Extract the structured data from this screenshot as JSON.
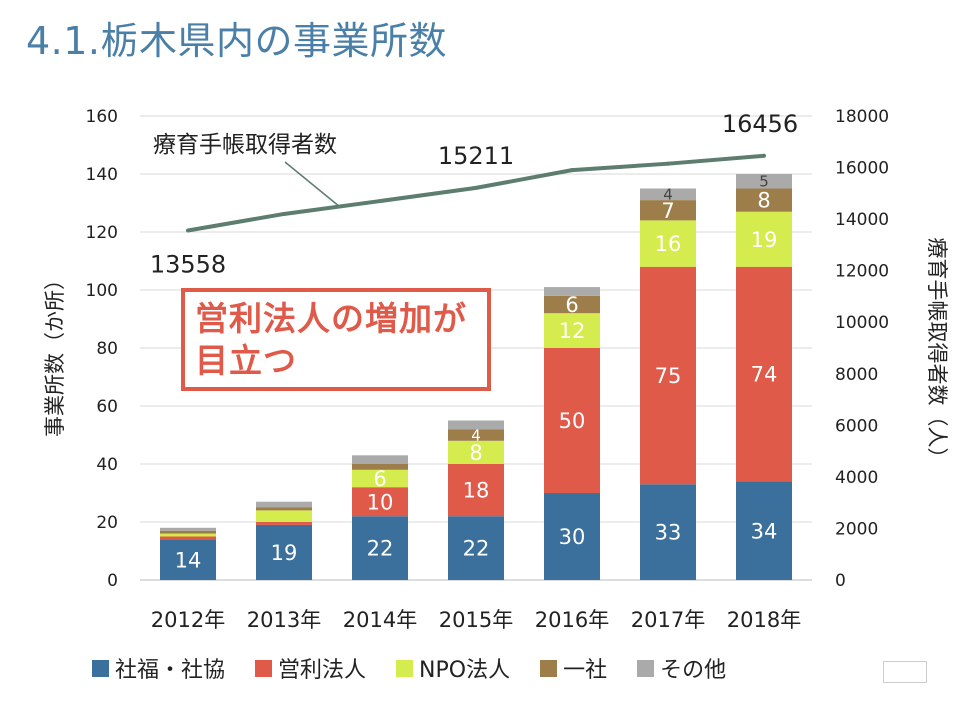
{
  "page": {
    "title": "4.1.栃木県内の事業所数"
  },
  "callout": {
    "line1": "営利法人の増加が",
    "line2": "目立つ"
  },
  "colors": {
    "social_welfare": "#3b6f9c",
    "for_profit": "#e05a4a",
    "npo": "#d4ec4e",
    "general_incorporated": "#9d7d4a",
    "other": "#aaaaaa",
    "line": "#5d7d6e"
  },
  "chart_data": {
    "type": "bar",
    "stacked": true,
    "categories": [
      "2012年",
      "2013年",
      "2014年",
      "2015年",
      "2016年",
      "2017年",
      "2018年"
    ],
    "ylabel": "事業所数（か所）",
    "y2label": "療育手帳取得者数（人）",
    "ylim": [
      0,
      160
    ],
    "y2lim": [
      0,
      18000
    ],
    "yticks": [
      0,
      20,
      40,
      60,
      80,
      100,
      120,
      140,
      160
    ],
    "y2ticks": [
      0,
      2000,
      4000,
      6000,
      8000,
      10000,
      12000,
      14000,
      16000,
      18000
    ],
    "grid": true,
    "legend_position": "bottom",
    "series": [
      {
        "name": "社福・社協",
        "color": "#3b6f9c",
        "values": [
          14,
          19,
          22,
          22,
          30,
          33,
          34
        ],
        "labels": [
          "14",
          "19",
          "22",
          "22",
          "30",
          "33",
          "34"
        ]
      },
      {
        "name": "営利法人",
        "color": "#e05a4a",
        "values": [
          1,
          1,
          10,
          18,
          50,
          75,
          74
        ],
        "labels": [
          "",
          "",
          "10",
          "18",
          "50",
          "75",
          "74"
        ]
      },
      {
        "name": "NPO法人",
        "color": "#d4ec4e",
        "values": [
          1,
          4,
          6,
          8,
          12,
          16,
          19
        ],
        "labels": [
          "",
          "",
          "6",
          "8",
          "12",
          "16",
          "19"
        ]
      },
      {
        "name": "一社",
        "color": "#9d7d4a",
        "values": [
          1,
          1,
          2,
          4,
          6,
          7,
          8
        ],
        "labels": [
          "",
          "",
          "",
          "4",
          "6",
          "7",
          "8"
        ]
      },
      {
        "name": "その他",
        "color": "#aaaaaa",
        "values": [
          1,
          2,
          3,
          3,
          3,
          4,
          5
        ],
        "labels": [
          "",
          "",
          "",
          "",
          "",
          "4",
          "5"
        ]
      }
    ],
    "line": {
      "name": "療育手帳取得者数",
      "color": "#5d7d6e",
      "values": [
        13558,
        14200,
        14700,
        15211,
        15900,
        16150,
        16456
      ],
      "labels": [
        "13558",
        "",
        "",
        "15211",
        "",
        "",
        "16456"
      ]
    }
  }
}
